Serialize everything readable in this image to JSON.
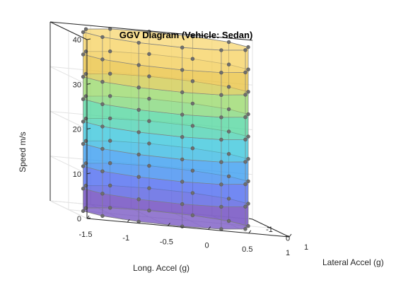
{
  "chart_data": {
    "type": "surface",
    "title": "GGV Diagram (Vehicle: Sedan)",
    "xlabel": "Long. Accel (g)",
    "ylabel": "Lateral Accel (g)",
    "zlabel": "Speed m/s",
    "xticks": [
      "-1.5",
      "-1",
      "-0.5",
      "0",
      "0.5",
      "1"
    ],
    "yticks": [
      "-1",
      "0",
      "1"
    ],
    "zticks": [
      "0",
      "10",
      "20",
      "30",
      "40"
    ],
    "xlim": [
      -1.5,
      1.0
    ],
    "ylim": [
      -1.0,
      1.0
    ],
    "zlim": [
      0,
      40
    ],
    "speeds": [
      0,
      5,
      10,
      15,
      20,
      25,
      30,
      35,
      40
    ],
    "points_per_ring": 12,
    "long_accel_max": 0.9,
    "long_accel_min": -0.9,
    "lateral_accel_max": 0.9,
    "colormap": [
      "#6a45bd",
      "#4f6cf0",
      "#3a9cf0",
      "#3dc6dc",
      "#56d7a0",
      "#9ad86d",
      "#e9c344",
      "#f5d466"
    ],
    "marker_color": "#6e6e6e",
    "grid": true
  }
}
